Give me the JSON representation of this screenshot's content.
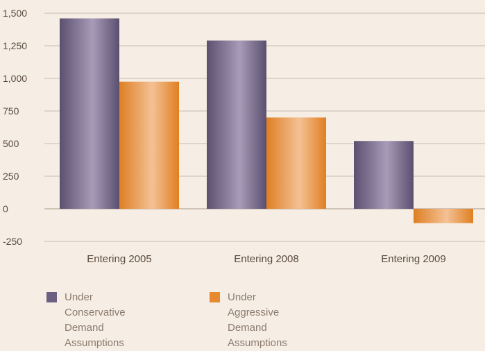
{
  "chart_data": {
    "type": "bar",
    "categories": [
      "Entering 2005",
      "Entering 2008",
      "Entering 2009"
    ],
    "series": [
      {
        "name": "Under Conservative\nDemand Assumptions",
        "values": [
          1460,
          1290,
          520
        ],
        "color": "#6b5f82"
      },
      {
        "name": "Under Aggressive\nDemand Assumptions",
        "values": [
          975,
          700,
          -110
        ],
        "color": "#e6892f"
      }
    ],
    "ylim": [
      -250,
      1500
    ],
    "yticks": [
      -250,
      0,
      250,
      500,
      750,
      1000,
      1250,
      1500
    ],
    "ytick_labels": [
      "-250",
      "0",
      "250",
      "500",
      "750",
      "1,000",
      "1,250",
      "1,500"
    ],
    "grid": true,
    "legend": "bottom-left"
  }
}
